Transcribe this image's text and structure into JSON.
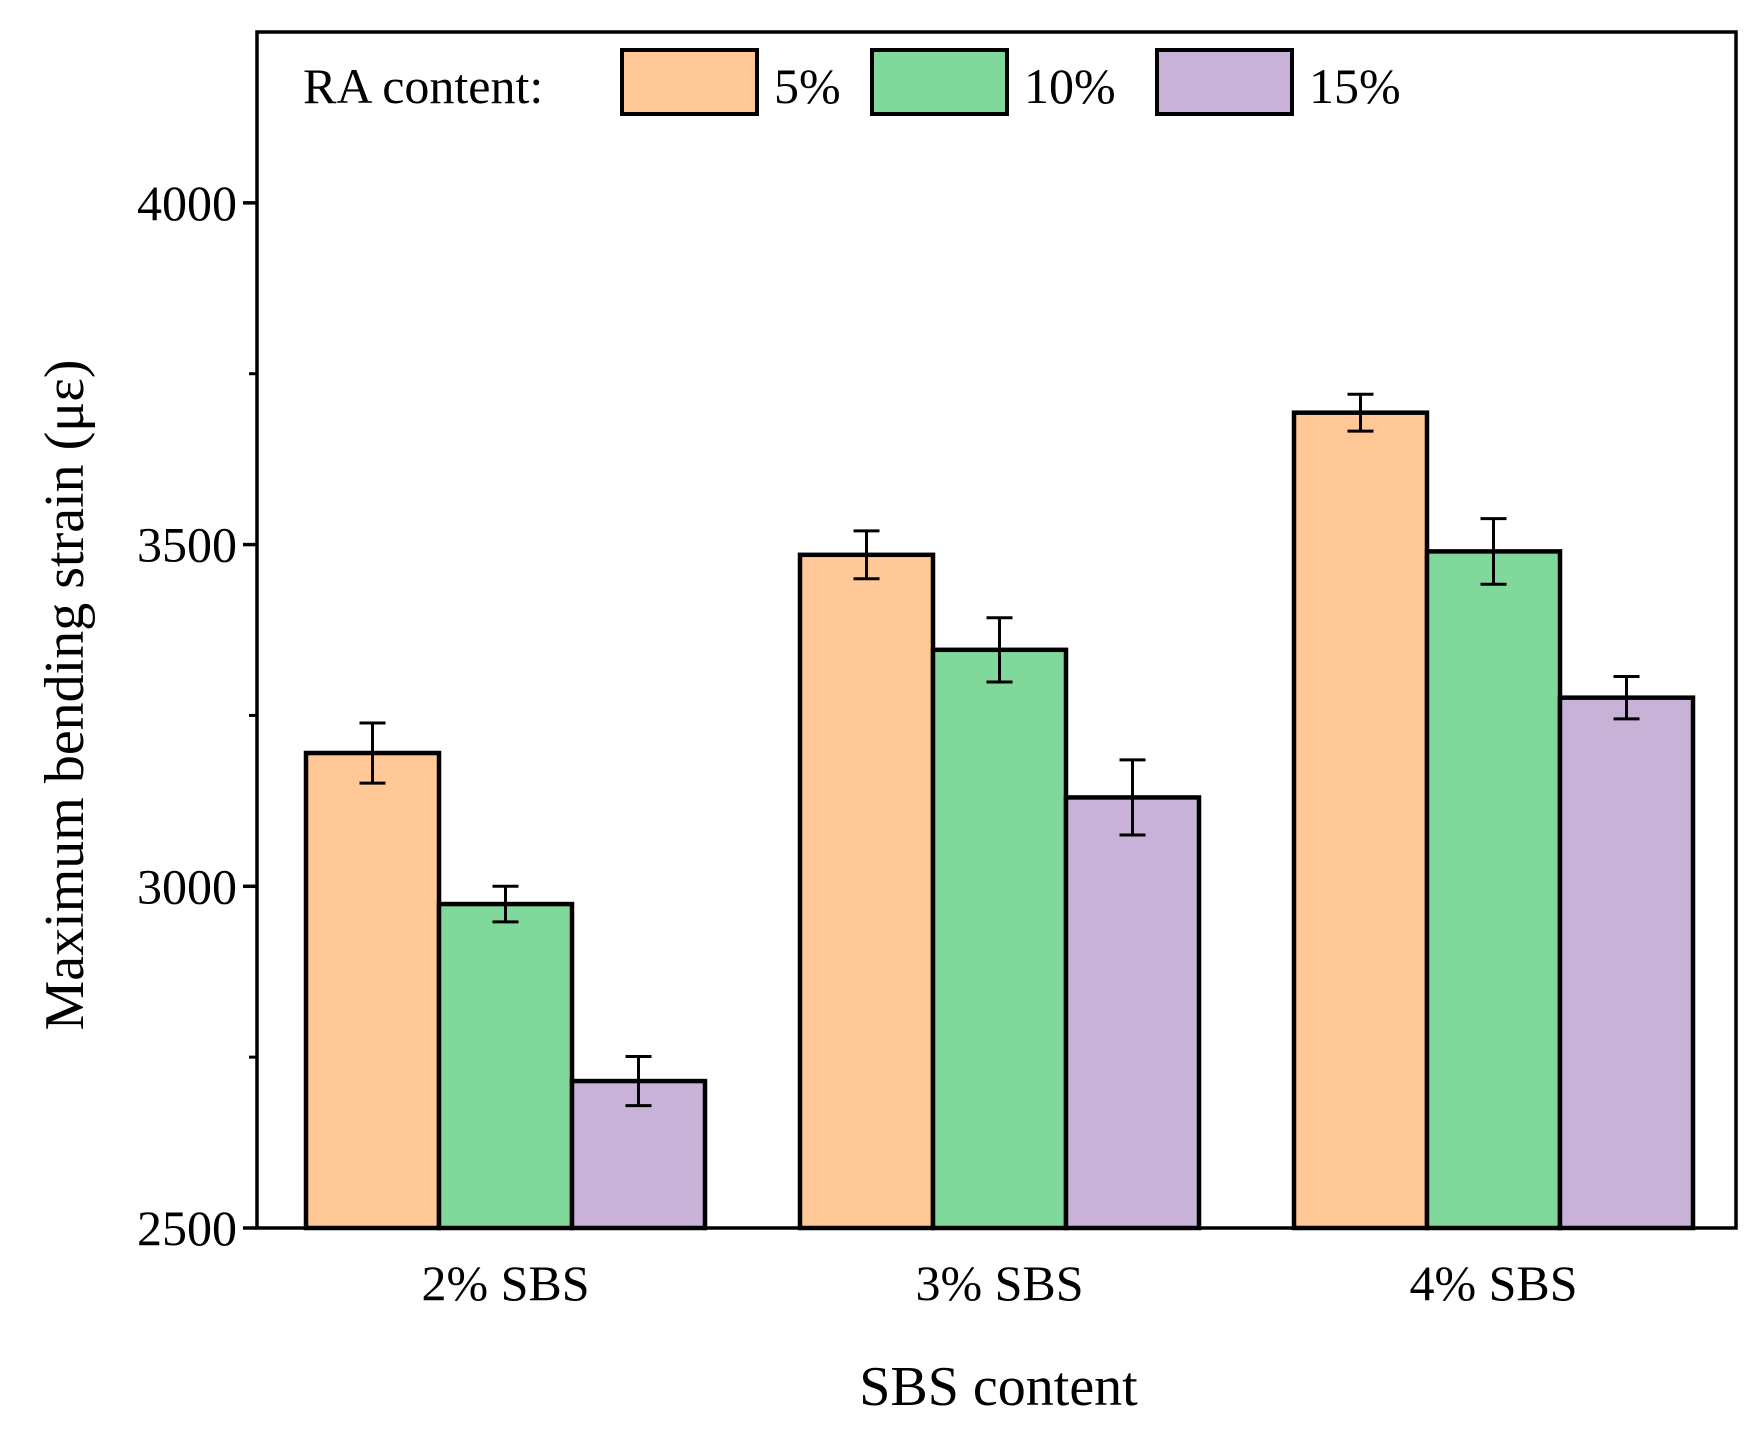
{
  "chart_data": {
    "type": "bar",
    "title": "",
    "xlabel": "SBS content",
    "ylabel": "Maximum bending strain (με)",
    "ylim": [
      2500,
      4250
    ],
    "yticks": [
      2500,
      3000,
      3500,
      4000
    ],
    "ytick_labels": [
      "2500",
      "3000",
      "3500",
      "4000"
    ],
    "minor_yticks": [
      2750,
      3250,
      3750
    ],
    "categories": [
      "2% SBS",
      "3% SBS",
      "4% SBS"
    ],
    "legend": {
      "title": "RA content:",
      "placement": "top-left, horizontal"
    },
    "series": [
      {
        "name": "5%",
        "color": "#FFC896",
        "values": [
          3195,
          3485,
          3693
        ],
        "errors": [
          44,
          35,
          27
        ]
      },
      {
        "name": "10%",
        "color": "#80D99B",
        "values": [
          2974,
          3346,
          3490
        ],
        "errors": [
          26,
          47,
          48
        ]
      },
      {
        "name": "15%",
        "color": "#C8B2D7",
        "values": [
          2715,
          3130,
          3276
        ],
        "errors": [
          36,
          55,
          31
        ]
      }
    ],
    "grid": false
  }
}
